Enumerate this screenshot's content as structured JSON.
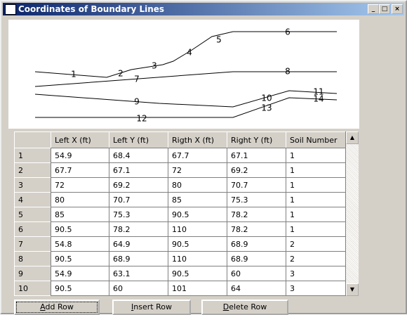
{
  "window": {
    "title": "Coordinates of Boundary Lines"
  },
  "diagram": {
    "labels": [
      "1",
      "2",
      "3",
      "4",
      "5",
      "6",
      "7",
      "8",
      "9",
      "10",
      "11",
      "12",
      "13",
      "14"
    ]
  },
  "table": {
    "columns": [
      "Left X (ft)",
      "Left Y (ft)",
      "Rigth X (ft)",
      "Right Y (ft)",
      "Soil Number"
    ],
    "rows": [
      [
        "1",
        "54.9",
        "68.4",
        "67.7",
        "67.1",
        "1"
      ],
      [
        "2",
        "67.7",
        "67.1",
        "72",
        "69.2",
        "1"
      ],
      [
        "3",
        "72",
        "69.2",
        "80",
        "70.7",
        "1"
      ],
      [
        "4",
        "80",
        "70.7",
        "85",
        "75.3",
        "1"
      ],
      [
        "5",
        "85",
        "75.3",
        "90.5",
        "78.2",
        "1"
      ],
      [
        "6",
        "90.5",
        "78.2",
        "110",
        "78.2",
        "1"
      ],
      [
        "7",
        "54.8",
        "64.9",
        "90.5",
        "68.9",
        "2"
      ],
      [
        "8",
        "90.5",
        "68.9",
        "110",
        "68.9",
        "2"
      ],
      [
        "9",
        "54.9",
        "63.1",
        "90.5",
        "60",
        "3"
      ],
      [
        "10",
        "90.5",
        "60",
        "101",
        "64",
        "3"
      ]
    ]
  },
  "buttons": [
    "Add Row",
    "Insert Row",
    "Delete Row"
  ]
}
